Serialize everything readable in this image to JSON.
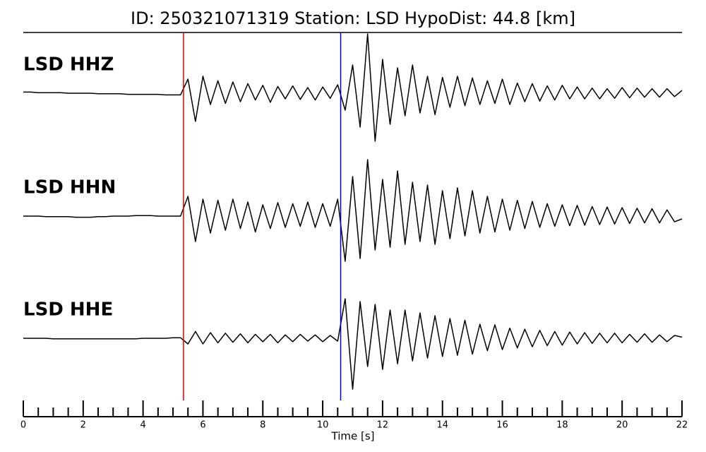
{
  "chart_data": {
    "type": "seismogram",
    "title": "ID: 250321071319   Station: LSD   HypoDist:    44.8 [km]",
    "x_label": "Time [s]",
    "xlim": [
      0,
      22
    ],
    "xticks": [
      0,
      2,
      4,
      6,
      8,
      10,
      12,
      14,
      16,
      18,
      20,
      22
    ],
    "xminorticks": [
      0.5,
      1,
      1.5,
      2.5,
      3,
      3.5,
      4.5,
      5,
      5.5,
      6.5,
      7,
      7.5,
      8.5,
      9,
      9.5,
      10.5,
      11,
      11.5,
      12.5,
      13,
      13.5,
      14.5,
      15,
      15.5,
      16.5,
      17,
      17.5,
      18.5,
      19,
      19.5,
      20.5,
      21,
      21.5
    ],
    "p_pick": 5.35,
    "p_color": "#e00000",
    "s_pick": 10.6,
    "s_color": "#0000cc",
    "label_color": "#4c9a00",
    "trace_color": "#000000",
    "x": [
      0,
      0.25,
      0.5,
      0.75,
      1,
      1.25,
      1.5,
      1.75,
      2,
      2.25,
      2.5,
      2.75,
      3,
      3.25,
      3.5,
      3.75,
      4,
      4.25,
      4.5,
      4.75,
      5,
      5.25,
      5.5,
      5.75,
      6,
      6.25,
      6.5,
      6.75,
      7,
      7.25,
      7.5,
      7.75,
      8,
      8.25,
      8.5,
      8.75,
      9,
      9.25,
      9.5,
      9.75,
      10,
      10.25,
      10.5,
      10.75,
      11,
      11.25,
      11.5,
      11.75,
      12,
      12.25,
      12.5,
      12.75,
      13,
      13.25,
      13.5,
      13.75,
      14,
      14.25,
      14.5,
      14.75,
      15,
      15.25,
      15.5,
      15.75,
      16,
      16.25,
      16.5,
      16.75,
      17,
      17.25,
      17.5,
      17.75,
      18,
      18.25,
      18.5,
      18.75,
      19,
      19.25,
      19.5,
      19.75,
      20,
      20.25,
      20.5,
      20.75,
      21,
      21.25,
      21.5,
      21.75,
      22
    ],
    "series": [
      {
        "name": "LSD HHZ",
        "values": [
          0.02,
          0.02,
          0.01,
          0.01,
          0.01,
          0.01,
          0.0,
          0.0,
          0.0,
          0.0,
          -0.01,
          -0.01,
          -0.01,
          -0.01,
          -0.02,
          -0.02,
          -0.02,
          -0.02,
          -0.02,
          -0.03,
          -0.03,
          -0.03,
          0.25,
          -0.5,
          0.3,
          -0.2,
          0.22,
          -0.18,
          0.2,
          -0.15,
          0.17,
          -0.12,
          0.14,
          -0.16,
          0.12,
          -0.1,
          0.13,
          -0.11,
          0.1,
          -0.12,
          0.11,
          -0.09,
          0.15,
          -0.3,
          0.5,
          -0.6,
          1.05,
          -0.85,
          0.6,
          -0.55,
          0.45,
          -0.4,
          0.5,
          -0.35,
          0.3,
          -0.38,
          0.28,
          -0.25,
          0.3,
          -0.22,
          0.27,
          -0.2,
          0.22,
          -0.18,
          0.25,
          -0.2,
          0.18,
          -0.15,
          0.17,
          -0.14,
          0.13,
          -0.12,
          0.14,
          -0.1,
          0.11,
          -0.1,
          0.09,
          -0.1,
          0.08,
          -0.09,
          0.1,
          -0.08,
          0.09,
          -0.07,
          0.08,
          -0.07,
          0.08,
          -0.06,
          0.05
        ]
      },
      {
        "name": "LSD HHN",
        "values": [
          0.0,
          0.0,
          0.0,
          -0.01,
          -0.01,
          -0.01,
          -0.01,
          -0.02,
          -0.02,
          -0.02,
          -0.01,
          -0.01,
          0.0,
          0.0,
          0.0,
          0.01,
          0.01,
          0.01,
          0.0,
          0.0,
          0.0,
          0.0,
          0.35,
          -0.45,
          0.3,
          -0.3,
          0.28,
          -0.25,
          0.3,
          -0.22,
          0.25,
          -0.28,
          0.2,
          -0.22,
          0.24,
          -0.2,
          0.22,
          -0.18,
          0.25,
          -0.2,
          0.22,
          -0.18,
          0.3,
          -0.8,
          0.7,
          -0.75,
          1.0,
          -0.6,
          0.65,
          -0.55,
          0.8,
          -0.5,
          0.6,
          -0.45,
          0.55,
          -0.5,
          0.45,
          -0.4,
          0.5,
          -0.35,
          0.45,
          -0.3,
          0.35,
          -0.28,
          0.3,
          -0.25,
          0.28,
          -0.22,
          0.26,
          -0.2,
          0.22,
          -0.18,
          0.2,
          -0.17,
          0.19,
          -0.16,
          0.17,
          -0.15,
          0.16,
          -0.14,
          0.15,
          -0.13,
          0.14,
          -0.12,
          0.13,
          -0.12,
          0.11,
          -0.1,
          -0.05
        ]
      },
      {
        "name": "LSD HHE",
        "values": [
          0.0,
          0.0,
          0.0,
          0.0,
          -0.01,
          -0.01,
          -0.01,
          -0.01,
          -0.01,
          -0.01,
          -0.01,
          -0.01,
          -0.01,
          -0.01,
          -0.01,
          -0.01,
          0.0,
          0.0,
          0.0,
          0.0,
          0.01,
          0.01,
          -0.1,
          0.12,
          -0.1,
          0.1,
          -0.08,
          0.09,
          -0.07,
          0.08,
          -0.08,
          0.07,
          -0.06,
          0.07,
          -0.08,
          0.06,
          -0.06,
          0.07,
          -0.05,
          0.06,
          -0.06,
          0.05,
          -0.05,
          0.7,
          -0.9,
          0.65,
          -0.5,
          0.6,
          -0.55,
          0.5,
          -0.45,
          0.5,
          -0.4,
          0.45,
          -0.35,
          0.4,
          -0.32,
          0.35,
          -0.3,
          0.32,
          -0.28,
          0.25,
          -0.22,
          0.24,
          -0.2,
          0.18,
          -0.17,
          0.16,
          -0.15,
          0.14,
          -0.13,
          0.12,
          -0.12,
          0.11,
          -0.1,
          0.1,
          -0.09,
          0.09,
          -0.08,
          0.09,
          -0.08,
          0.07,
          -0.07,
          0.08,
          -0.07,
          0.06,
          -0.06,
          0.05,
          0.02
        ]
      }
    ]
  }
}
